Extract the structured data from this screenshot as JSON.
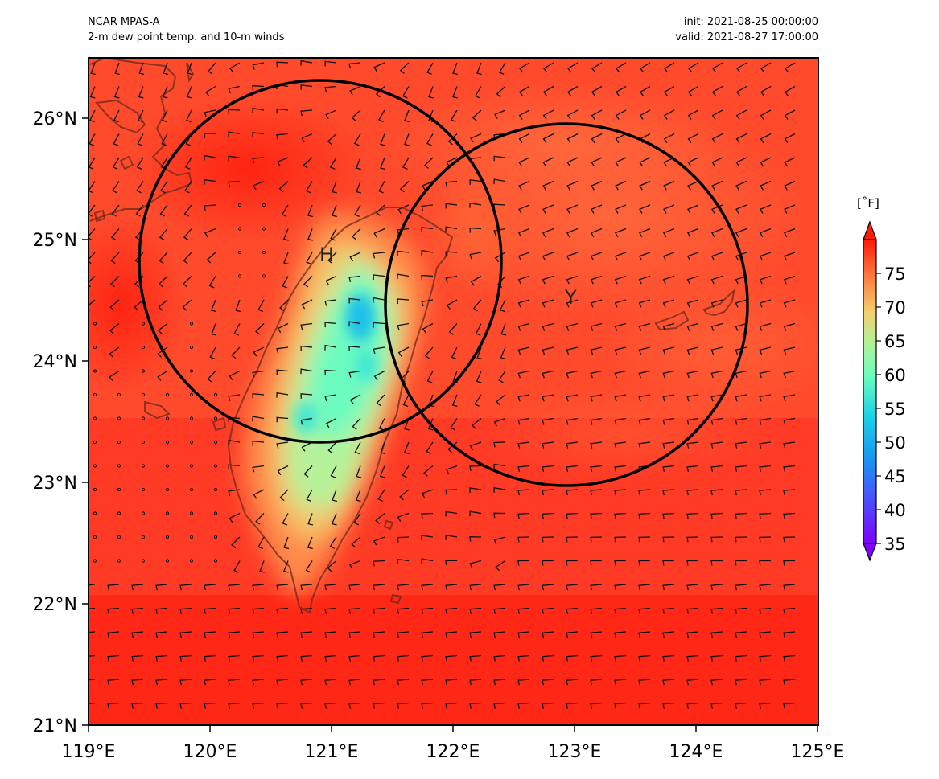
{
  "header": {
    "left_line1": "NCAR MPAS-A",
    "left_line2": "2-m dew point temp. and 10-m winds",
    "right_line1": "init: 2021-08-25 00:00:00",
    "right_line2": "valid: 2021-08-27 17:00:00"
  },
  "map": {
    "lon_range": [
      119,
      125
    ],
    "lat_range": [
      21,
      26.5
    ],
    "x_tick_labels": [
      "119°E",
      "120°E",
      "121°E",
      "122°E",
      "123°E",
      "124°E",
      "125°E"
    ],
    "y_tick_labels": [
      "21°N",
      "22°N",
      "23°N",
      "24°N",
      "25°N",
      "26°N"
    ],
    "markers": [
      {
        "label": "H",
        "lon": 121.0,
        "lat": 24.87
      },
      {
        "label": "Y",
        "lon": 122.9,
        "lat": 24.5
      }
    ],
    "circles": [
      {
        "center_lon": 120.95,
        "center_lat": 24.83,
        "radius_deg": 1.48
      },
      {
        "center_lon": 122.95,
        "center_lat": 24.45,
        "radius_deg": 1.48
      }
    ]
  },
  "colorbar": {
    "unit_label": "[˚F]",
    "ticks": [
      "35",
      "40",
      "45",
      "50",
      "55",
      "60",
      "65",
      "70",
      "75"
    ],
    "range": [
      35,
      80
    ],
    "extend": "both",
    "colormap": "rainbow"
  }
}
